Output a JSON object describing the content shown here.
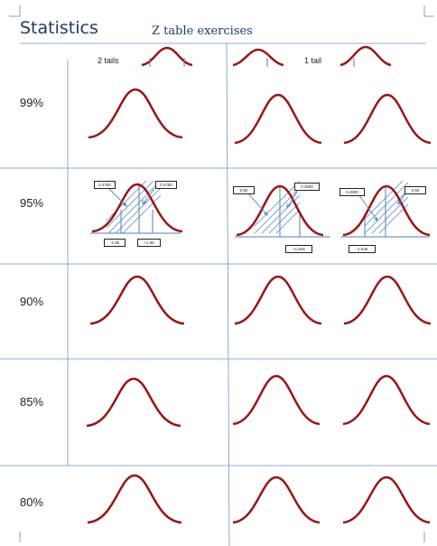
{
  "header": {
    "title": "Statistics",
    "subtitle": "Z table exercises",
    "col_two_tails": "2 tails",
    "col_one_tail": "1 tail"
  },
  "rows": [
    {
      "label": "99%"
    },
    {
      "label": "95%"
    },
    {
      "label": "90%"
    },
    {
      "label": "85%"
    },
    {
      "label": "80%"
    }
  ],
  "example_95": {
    "two_tail": {
      "left_area": "0.4750",
      "right_area": "0.4750",
      "left_z": "-1.96",
      "right_z": "+1.96"
    },
    "one_tail_right": {
      "tail_area": "0.50",
      "center_area": "0.4500",
      "z": "+1.645"
    },
    "one_tail_left": {
      "center_area": "0.4500",
      "tail_area": "0.50",
      "z": "-1.645"
    }
  },
  "colors": {
    "curve": "#9b1515",
    "grid_line": "#6f93c8",
    "hatch": "#4a7fc0",
    "title_text": "#1f3a6e"
  }
}
